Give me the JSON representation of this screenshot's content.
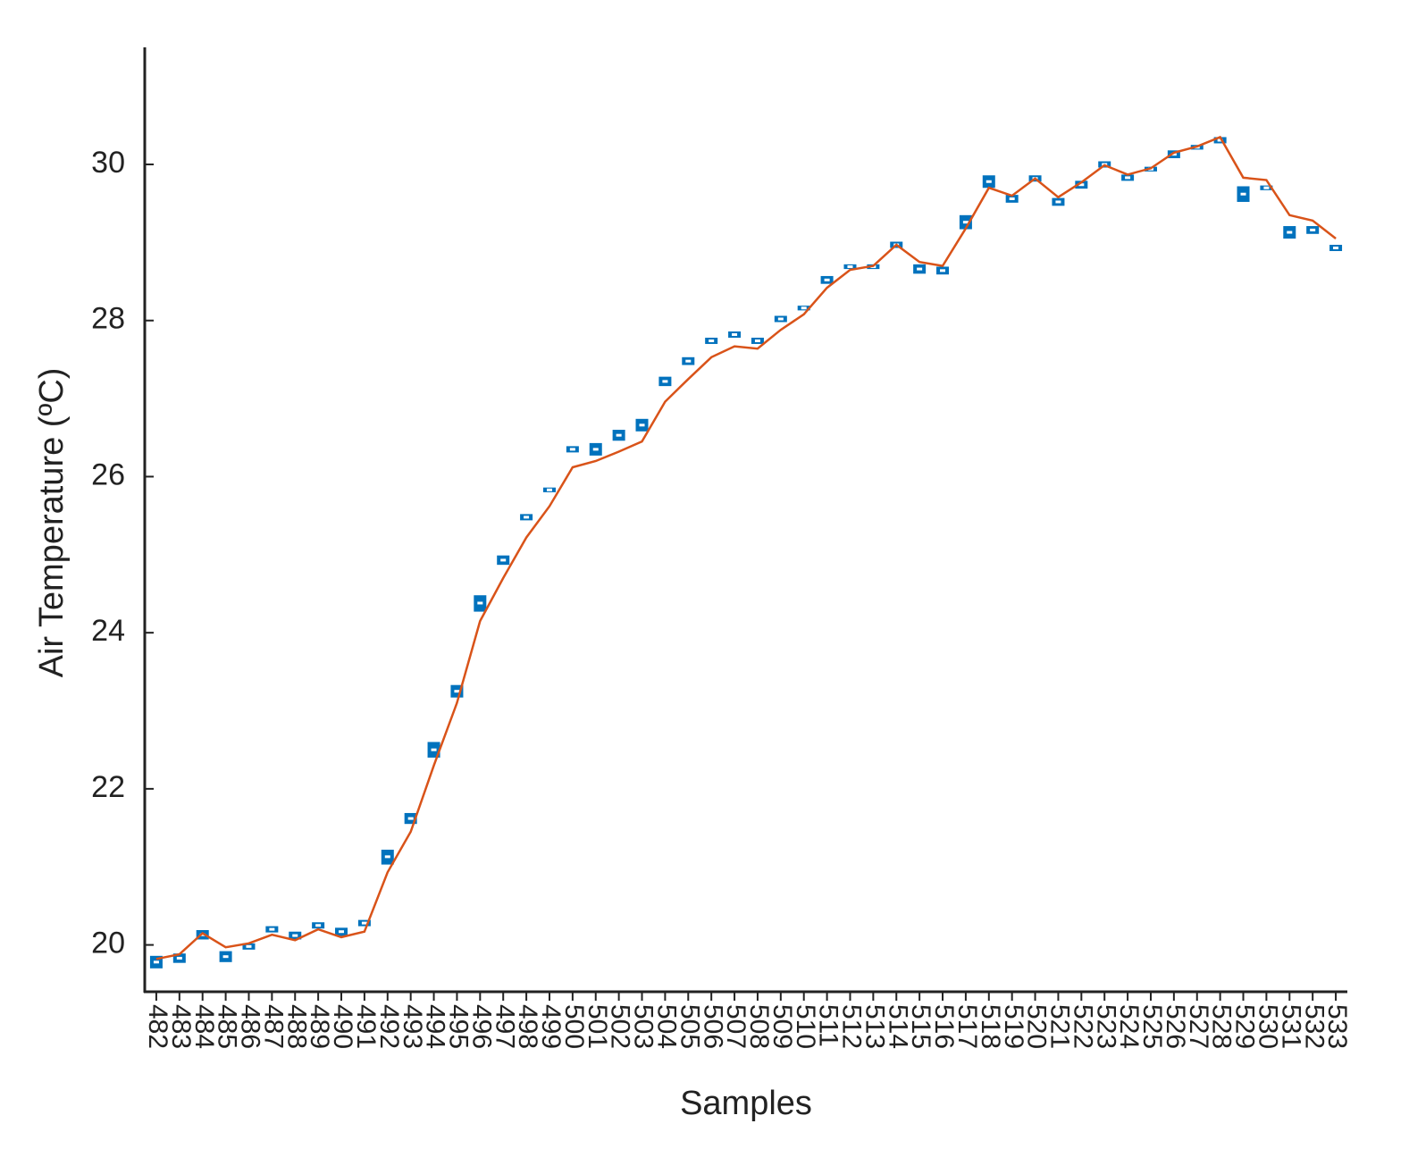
{
  "chart_data": {
    "type": "boxline",
    "x_label": "Samples",
    "y_label": "Air Temperature (ºC)",
    "categories": [
      "482",
      "483",
      "484",
      "485",
      "486",
      "487",
      "488",
      "489",
      "490",
      "491",
      "492",
      "493",
      "494",
      "495",
      "496",
      "497",
      "498",
      "499",
      "500",
      "501",
      "502",
      "503",
      "504",
      "505",
      "506",
      "507",
      "508",
      "509",
      "510",
      "511",
      "512",
      "513",
      "514",
      "515",
      "516",
      "517",
      "518",
      "519",
      "520",
      "521",
      "522",
      "523",
      "524",
      "525",
      "526",
      "527",
      "528",
      "529",
      "530",
      "531",
      "532",
      "533"
    ],
    "box_color": "#0072BD",
    "median": [
      19.78,
      19.83,
      20.13,
      19.85,
      19.98,
      20.2,
      20.12,
      20.25,
      20.17,
      20.28,
      21.13,
      21.62,
      22.5,
      23.25,
      24.38,
      24.93,
      25.48,
      25.83,
      26.35,
      26.35,
      26.53,
      26.66,
      27.22,
      27.48,
      27.74,
      27.82,
      27.74,
      28.02,
      28.16,
      28.52,
      28.69,
      28.69,
      28.97,
      28.66,
      28.64,
      29.26,
      29.78,
      29.56,
      29.82,
      29.52,
      29.74,
      30.0,
      29.83,
      29.94,
      30.13,
      30.22,
      30.31,
      29.62,
      29.7,
      29.13,
      29.16,
      28.93
    ],
    "q1": [
      19.7,
      19.77,
      20.07,
      19.78,
      19.94,
      20.16,
      20.07,
      20.21,
      20.11,
      20.24,
      21.03,
      21.55,
      22.4,
      23.17,
      24.27,
      24.87,
      25.44,
      25.8,
      26.31,
      26.27,
      26.46,
      26.58,
      27.16,
      27.43,
      27.7,
      27.78,
      27.7,
      27.98,
      28.13,
      28.47,
      28.66,
      28.66,
      28.93,
      28.6,
      28.59,
      29.17,
      29.7,
      29.51,
      29.78,
      29.47,
      29.69,
      29.96,
      29.79,
      29.91,
      30.08,
      30.19,
      30.27,
      29.52,
      29.67,
      29.05,
      29.11,
      28.89
    ],
    "q3": [
      19.86,
      19.89,
      20.19,
      19.92,
      20.02,
      20.24,
      20.17,
      20.29,
      20.22,
      20.32,
      21.22,
      21.69,
      22.6,
      23.33,
      24.48,
      24.99,
      25.52,
      25.86,
      26.39,
      26.43,
      26.6,
      26.74,
      27.28,
      27.53,
      27.78,
      27.86,
      27.78,
      28.06,
      28.19,
      28.57,
      28.72,
      28.72,
      29.01,
      28.72,
      28.69,
      29.35,
      29.86,
      29.61,
      29.86,
      29.57,
      29.79,
      30.04,
      29.87,
      29.97,
      30.18,
      30.25,
      30.35,
      29.72,
      29.73,
      29.21,
      29.21,
      28.97
    ],
    "line_color": "#D95319",
    "line_values": [
      19.82,
      19.88,
      20.15,
      19.97,
      20.02,
      20.13,
      20.06,
      20.2,
      20.1,
      20.17,
      20.93,
      21.45,
      22.3,
      23.1,
      24.15,
      24.7,
      25.22,
      25.62,
      26.12,
      26.2,
      26.32,
      26.45,
      26.96,
      27.25,
      27.53,
      27.67,
      27.64,
      27.88,
      28.08,
      28.42,
      28.65,
      28.7,
      28.97,
      28.75,
      28.7,
      29.18,
      29.7,
      29.6,
      29.82,
      29.58,
      29.77,
      29.99,
      29.87,
      29.95,
      30.15,
      30.23,
      30.35,
      29.83,
      29.8,
      29.35,
      29.28,
      29.05
    ],
    "ylim": [
      19.4,
      31.5
    ],
    "yticks": [
      20,
      22,
      24,
      26,
      28,
      30
    ]
  }
}
